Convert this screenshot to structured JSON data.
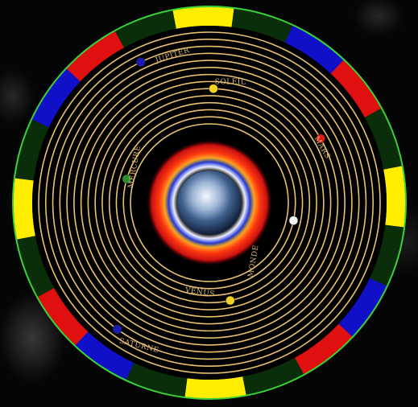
{
  "disk": {
    "rim_segments": [
      {
        "color": "#ffee00"
      },
      {
        "color": "#0a2e0a"
      },
      {
        "color": "#1010c8"
      },
      {
        "color": "#e01010"
      },
      {
        "color": "#0a2e0a"
      },
      {
        "color": "#ffee00"
      },
      {
        "color": "#0a2e0a"
      },
      {
        "color": "#1010c8"
      },
      {
        "color": "#e01010"
      },
      {
        "color": "#0a2e0a"
      },
      {
        "color": "#ffee00"
      },
      {
        "color": "#0a2e0a"
      },
      {
        "color": "#1010c8"
      },
      {
        "color": "#e01010"
      },
      {
        "color": "#0a2e0a"
      },
      {
        "color": "#ffee00"
      },
      {
        "color": "#0a2e0a"
      },
      {
        "color": "#1010c8"
      },
      {
        "color": "#e01010"
      },
      {
        "color": "#0a2e0a"
      }
    ],
    "outline_color": "#39d339",
    "ring_color": "#e8c070",
    "ring_count": 14,
    "center": {
      "name": "Earth"
    }
  },
  "planets": [
    {
      "name": "Moon",
      "color": "#f4f4f4",
      "label": "MONDE"
    },
    {
      "name": "Mercury",
      "color": "#2e8b2e",
      "label": "MERCURE"
    },
    {
      "name": "Venus",
      "color": "#f0d020",
      "label": "VENUS"
    },
    {
      "name": "Sun",
      "color": "#f5d21e",
      "label": "SOLEIL"
    },
    {
      "name": "Mars",
      "color": "#e01818",
      "label": "MARS"
    },
    {
      "name": "Jupiter",
      "color": "#1a1ab0",
      "label": "JUPITER"
    },
    {
      "name": "Saturn",
      "color": "#1a1ab0",
      "label": "SATURNE"
    }
  ]
}
